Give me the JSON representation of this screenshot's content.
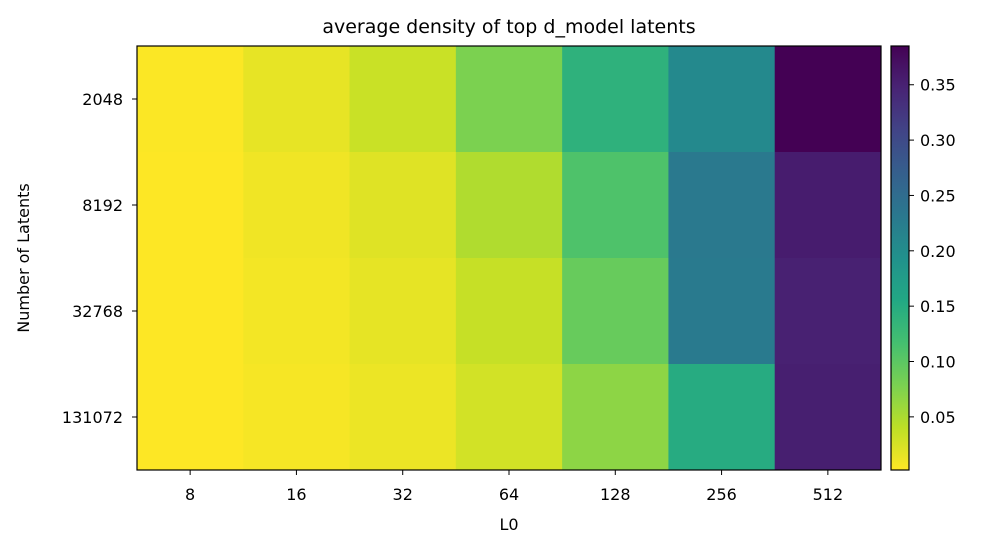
{
  "chart_data": {
    "type": "heatmap",
    "title": "average density of top d_model latents",
    "xlabel": "L0",
    "ylabel": "Number of Latents",
    "x_categories": [
      "8",
      "16",
      "32",
      "64",
      "128",
      "256",
      "512"
    ],
    "y_categories": [
      "2048",
      "8192",
      "32768",
      "131072"
    ],
    "values": [
      [
        0.003,
        0.015,
        0.033,
        0.078,
        0.14,
        0.205,
        0.385
      ],
      [
        0.002,
        0.01,
        0.02,
        0.048,
        0.11,
        0.23,
        0.355
      ],
      [
        0.002,
        0.008,
        0.016,
        0.035,
        0.092,
        0.228,
        0.35
      ],
      [
        0.002,
        0.006,
        0.012,
        0.028,
        0.068,
        0.15,
        0.352
      ]
    ],
    "colorbar": {
      "min": 0.002,
      "max": 0.385,
      "colormap": "viridis_r",
      "ticks": [
        "0.05",
        "0.10",
        "0.15",
        "0.20",
        "0.25",
        "0.30",
        "0.35"
      ]
    },
    "grid": false
  }
}
